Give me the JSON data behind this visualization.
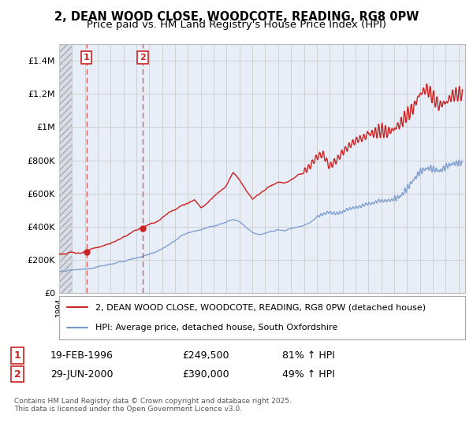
{
  "title": "2, DEAN WOOD CLOSE, WOODCOTE, READING, RG8 0PW",
  "subtitle": "Price paid vs. HM Land Registry's House Price Index (HPI)",
  "ylim": [
    0,
    1500000
  ],
  "xlim_start": 1994.0,
  "xlim_end": 2025.5,
  "plot_background": "#e8eef8",
  "hatch_region_end": 1995.0,
  "grid_color": "#cccccc",
  "red_line_color": "#cc2222",
  "blue_line_color": "#7799cc",
  "purchase1_date": 1996.13,
  "purchase1_price": 249500,
  "purchase2_date": 2000.49,
  "purchase2_price": 390000,
  "purchase1_label": "1",
  "purchase2_label": "2",
  "legend_line1": "2, DEAN WOOD CLOSE, WOODCOTE, READING, RG8 0PW (detached house)",
  "legend_line2": "HPI: Average price, detached house, South Oxfordshire",
  "table_row1": [
    "1",
    "19-FEB-1996",
    "£249,500",
    "81% ↑ HPI"
  ],
  "table_row2": [
    "2",
    "29-JUN-2000",
    "£390,000",
    "49% ↑ HPI"
  ],
  "footer": "Contains HM Land Registry data © Crown copyright and database right 2025.\nThis data is licensed under the Open Government Licence v3.0.",
  "yticks": [
    0,
    200000,
    400000,
    600000,
    800000,
    1000000,
    1200000,
    1400000
  ],
  "ytick_labels": [
    "£0",
    "£200K",
    "£400K",
    "£600K",
    "£800K",
    "£1M",
    "£1.2M",
    "£1.4M"
  ],
  "title_fontsize": 10.5,
  "subtitle_fontsize": 9.5
}
